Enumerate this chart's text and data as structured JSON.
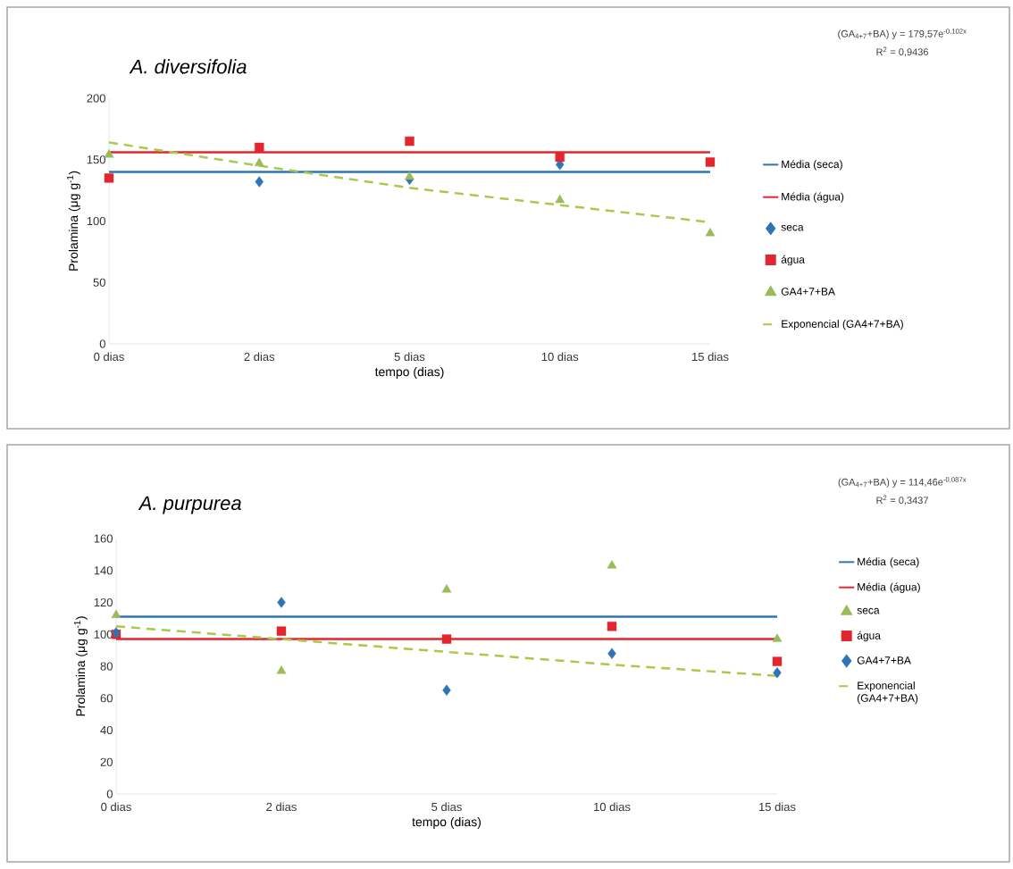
{
  "chart_data": [
    {
      "type": "scatter",
      "title": "A. diversifolia",
      "xlabel": "tempo (dias)",
      "ylabel": "Prolamina (μg g$^{-1}$)",
      "categories": [
        "0 dias",
        "2 dias",
        "5 dias",
        "10 dias",
        "15 dias"
      ],
      "ylim": [
        0,
        200
      ],
      "yticks": [
        0,
        50,
        100,
        150,
        200
      ],
      "legend": "right",
      "annotations": [
        "(GA$_{4+7}$+BA) y = 179,57e$^{-0,102x}$",
        "R$^{2}$ = 0,9436"
      ],
      "series": [
        {
          "name": "Média (seca)",
          "type": "line",
          "color": "#2e75b6",
          "line_style": "solid",
          "values": [
            140,
            140,
            140,
            140,
            140
          ]
        },
        {
          "name": "Média (água)",
          "type": "line",
          "color": "#e3262e",
          "line_style": "solid",
          "values": [
            156,
            156,
            156,
            156,
            156
          ]
        },
        {
          "name": "seca",
          "type": "scatter",
          "color": "#2e75b6",
          "marker": "diamond",
          "values": [
            null,
            132,
            134,
            146,
            null
          ]
        },
        {
          "name": "água",
          "type": "scatter",
          "color": "#e3262e",
          "marker": "square",
          "values": [
            135,
            160,
            165,
            152,
            148
          ]
        },
        {
          "name": "GA4+7+BA",
          "type": "scatter",
          "color": "#9bbb59",
          "marker": "triangle",
          "values": [
            154,
            147,
            136,
            117,
            90
          ]
        },
        {
          "name": "Exponencial (GA4+7+BA)",
          "type": "line",
          "color": "#a9c94a",
          "line_style": "dashed",
          "values": [
            164,
            145,
            127,
            113,
            99
          ]
        }
      ]
    },
    {
      "type": "scatter",
      "title": "A. purpurea",
      "xlabel": "tempo (dias)",
      "ylabel": "Prolamina (μg g$^{-1}$)",
      "categories": [
        "0 dias",
        "2 dias",
        "5 dias",
        "10 dias",
        "15 dias"
      ],
      "ylim": [
        0,
        160
      ],
      "yticks": [
        0,
        20,
        40,
        60,
        80,
        100,
        120,
        140,
        160
      ],
      "legend": "right",
      "annotations": [
        "(GA$_{4+7}$+BA) y = 114,46e$^{-0,087x}$",
        "R$^{2}$ = 0,3437"
      ],
      "series": [
        {
          "name": "Média (seca)",
          "type": "line",
          "color": "#2e75b6",
          "line_style": "solid",
          "values": [
            111,
            111,
            111,
            111,
            111
          ]
        },
        {
          "name": "Média (água)",
          "type": "line",
          "color": "#e3262e",
          "line_style": "solid",
          "values": [
            97,
            97,
            97,
            97,
            97
          ]
        },
        {
          "name": "seca",
          "type": "scatter",
          "color": "#9bbb59",
          "marker": "triangle",
          "values": [
            112,
            77,
            128,
            143,
            97
          ]
        },
        {
          "name": "água",
          "type": "scatter",
          "color": "#e3262e",
          "marker": "square",
          "values": [
            100,
            102,
            97,
            105,
            83
          ]
        },
        {
          "name": "GA4+7+BA",
          "type": "scatter",
          "color": "#2e75b6",
          "marker": "diamond",
          "values": [
            101,
            120,
            65,
            88,
            76
          ]
        },
        {
          "name": "Exponencial (GA4+7+BA)",
          "type": "line",
          "color": "#a9c94a",
          "line_style": "dashed",
          "values": [
            105,
            97,
            89,
            81,
            74
          ]
        }
      ]
    }
  ]
}
